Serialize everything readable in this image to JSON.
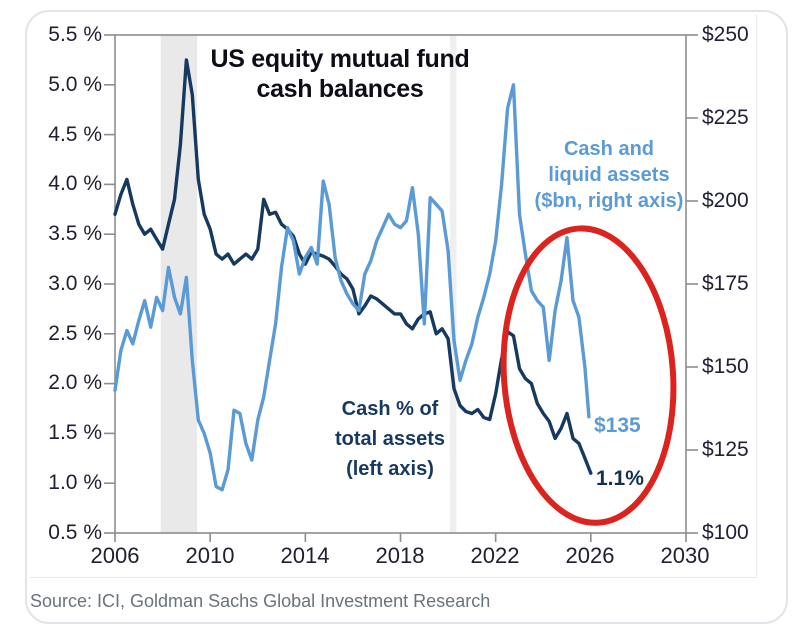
{
  "source_line": "Source: ICI, Goldman Sachs Global Investment Research",
  "chart_data": {
    "type": "line",
    "title": "US equity mutual fund cash balances",
    "title_lines": [
      "US equity mutual fund",
      "cash balances"
    ],
    "legend_position": "inline-annotations",
    "grid": false,
    "x_axis": {
      "range": [
        2006,
        2030
      ],
      "ticks": [
        "2006",
        "2010",
        "2014",
        "2018",
        "2022",
        "2026",
        "2030"
      ],
      "tick_years": [
        2006,
        2010,
        2014,
        2018,
        2022,
        2026,
        2030
      ]
    },
    "left_axis": {
      "range": [
        0.5,
        5.5
      ],
      "unit": "%",
      "ticks": [
        "5.5 %",
        "5.0 %",
        "4.5 %",
        "4.0 %",
        "3.5 %",
        "3.0 %",
        "2.5 %",
        "2.0 %",
        "1.5 %",
        "1.0 %",
        "0.5 %"
      ]
    },
    "right_axis": {
      "range": [
        100,
        250
      ],
      "unit": "$bn",
      "ticks": [
        "$250",
        "$225",
        "$200",
        "$175",
        "$150",
        "$125",
        "$100"
      ]
    },
    "recession_bands": {
      "years": [
        [
          2007.92,
          2009.45
        ],
        [
          2020.08,
          2020.35
        ]
      ],
      "colors": [
        "#e9e9e9",
        "#efefef"
      ]
    },
    "series": [
      {
        "name": "Cash % of total assets (left axis)",
        "axis": "left",
        "color": "#16395f",
        "x": [
          2006.0,
          2006.25,
          2006.5,
          2006.75,
          2007.0,
          2007.25,
          2007.5,
          2007.75,
          2008.0,
          2008.25,
          2008.5,
          2008.75,
          2009.0,
          2009.25,
          2009.5,
          2009.75,
          2010.0,
          2010.25,
          2010.5,
          2010.75,
          2011.0,
          2011.25,
          2011.5,
          2011.75,
          2012.0,
          2012.25,
          2012.5,
          2012.75,
          2013.0,
          2013.25,
          2013.5,
          2013.75,
          2014.0,
          2014.25,
          2014.5,
          2014.75,
          2015.0,
          2015.25,
          2015.5,
          2015.75,
          2016.0,
          2016.25,
          2016.5,
          2016.75,
          2017.0,
          2017.25,
          2017.5,
          2017.75,
          2018.0,
          2018.25,
          2018.5,
          2018.75,
          2019.0,
          2019.25,
          2019.5,
          2019.75,
          2020.0,
          2020.25,
          2020.5,
          2020.75,
          2021.0,
          2021.25,
          2021.5,
          2021.75,
          2022.0,
          2022.25,
          2022.5,
          2022.75,
          2023.0,
          2023.25,
          2023.5,
          2023.75,
          2024.0,
          2024.25,
          2024.5,
          2024.75,
          2025.0,
          2025.25,
          2025.5,
          2025.75,
          2026.0
        ],
        "values": [
          3.7,
          3.9,
          4.05,
          3.8,
          3.6,
          3.5,
          3.55,
          3.45,
          3.35,
          3.6,
          3.85,
          4.4,
          5.25,
          4.9,
          4.05,
          3.7,
          3.55,
          3.3,
          3.25,
          3.3,
          3.2,
          3.25,
          3.3,
          3.25,
          3.35,
          3.85,
          3.7,
          3.72,
          3.6,
          3.55,
          3.48,
          3.3,
          3.2,
          3.32,
          3.3,
          3.28,
          3.25,
          3.18,
          3.1,
          3.05,
          2.95,
          2.7,
          2.78,
          2.88,
          2.85,
          2.8,
          2.75,
          2.7,
          2.7,
          2.6,
          2.55,
          2.65,
          2.7,
          2.72,
          2.5,
          2.55,
          2.45,
          1.95,
          1.78,
          1.72,
          1.7,
          1.74,
          1.66,
          1.64,
          1.9,
          2.25,
          2.52,
          2.48,
          2.15,
          2.05,
          2.0,
          1.8,
          1.7,
          1.62,
          1.45,
          1.55,
          1.7,
          1.45,
          1.4,
          1.25,
          1.1
        ]
      },
      {
        "name": "Cash and liquid assets ($bn, right axis)",
        "axis": "right",
        "color": "#5b9bd5",
        "x": [
          2006.0,
          2006.25,
          2006.5,
          2006.75,
          2007.0,
          2007.25,
          2007.5,
          2007.75,
          2008.0,
          2008.25,
          2008.5,
          2008.75,
          2009.0,
          2009.25,
          2009.5,
          2009.75,
          2010.0,
          2010.25,
          2010.5,
          2010.75,
          2011.0,
          2011.25,
          2011.5,
          2011.75,
          2012.0,
          2012.25,
          2012.5,
          2012.75,
          2013.0,
          2013.25,
          2013.5,
          2013.75,
          2014.0,
          2014.25,
          2014.5,
          2014.75,
          2015.0,
          2015.25,
          2015.5,
          2015.75,
          2016.0,
          2016.25,
          2016.5,
          2016.75,
          2017.0,
          2017.25,
          2017.5,
          2017.75,
          2018.0,
          2018.25,
          2018.5,
          2018.75,
          2019.0,
          2019.25,
          2019.5,
          2019.75,
          2020.0,
          2020.25,
          2020.5,
          2020.75,
          2021.0,
          2021.25,
          2021.5,
          2021.75,
          2022.0,
          2022.25,
          2022.5,
          2022.75,
          2023.0,
          2023.25,
          2023.5,
          2023.75,
          2024.0,
          2024.25,
          2024.5,
          2024.75,
          2025.0,
          2025.25,
          2025.5,
          2025.75,
          2025.92
        ],
        "values": [
          143,
          155,
          161,
          157,
          164,
          170,
          162,
          171,
          167,
          180,
          171,
          166,
          177,
          152,
          134,
          130,
          124,
          114,
          113,
          119,
          137,
          136,
          127,
          122,
          134,
          141,
          152,
          163,
          180,
          192,
          188,
          178,
          183,
          186,
          181,
          206,
          199,
          183,
          176,
          172,
          169,
          167,
          178,
          182,
          188,
          192,
          196,
          193,
          192,
          194,
          204,
          190,
          163,
          201,
          199,
          197,
          185,
          158,
          146,
          152,
          157,
          165,
          171,
          178,
          188,
          205,
          228,
          235,
          196,
          184,
          173,
          170,
          168,
          152,
          167,
          176,
          189,
          170,
          165,
          150,
          135
        ]
      }
    ],
    "annotations": {
      "blue_label_lines": [
        "Cash and",
        "liquid assets",
        "($bn, right axis)"
      ],
      "dark_label_lines": [
        "Cash % of",
        "total assets",
        "(left axis)"
      ],
      "end_value_blue": "$135",
      "end_value_dark": "1.1%",
      "ellipse": {
        "cx_year": 2025.9,
        "cy_left_pct": 2.08,
        "rx_years": 3.55,
        "ry_left_pct": 1.48,
        "color": "#dc241f",
        "rotation_deg": -4
      }
    }
  }
}
